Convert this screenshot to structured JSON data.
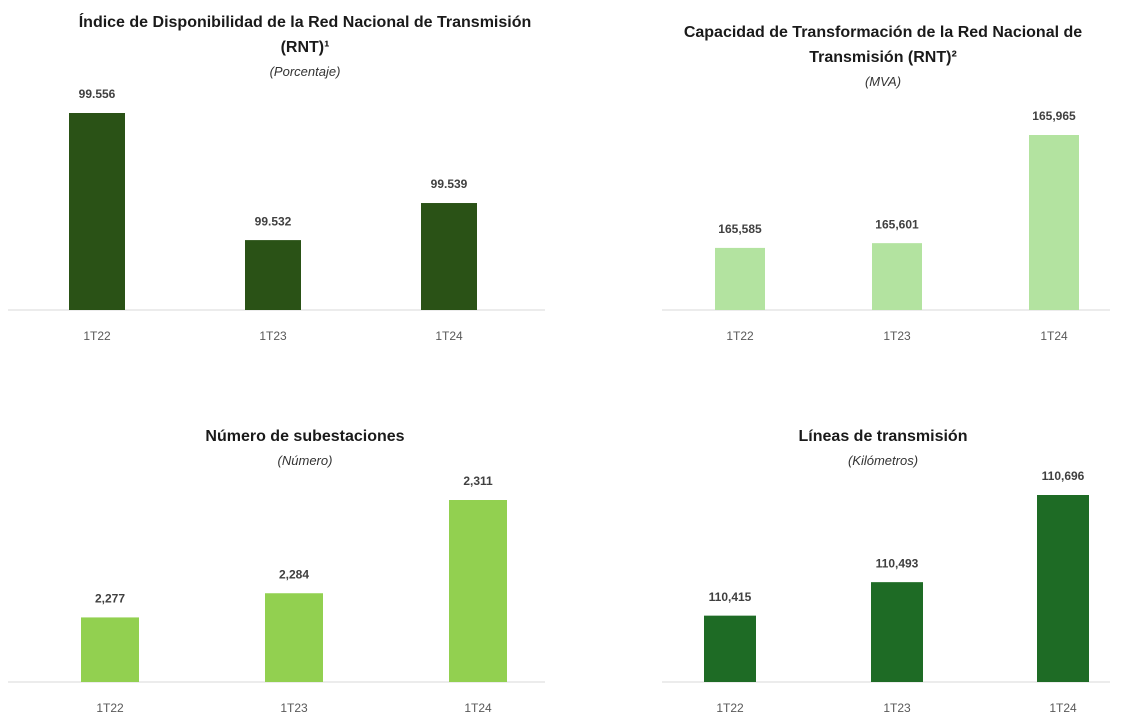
{
  "chart_data": [
    {
      "type": "bar",
      "title": "Índice de Disponibilidad de la Red Nacional de Transmisión (RNT)¹",
      "subtitle": "(Porcentaje)",
      "categories": [
        "1T22",
        "1T23",
        "1T24"
      ],
      "values": [
        99.556,
        99.532,
        99.539
      ],
      "color": "#2a5216"
    },
    {
      "type": "bar",
      "title": "Capacidad de Transformación de la Red Nacional de Transmisión (RNT)²",
      "subtitle": "(MVA)",
      "categories": [
        "1T22",
        "1T23",
        "1T24"
      ],
      "values": [
        165585,
        165601,
        165965
      ],
      "value_labels": [
        "165,585",
        "165,601",
        "165,965"
      ],
      "color": "#b3e3a0"
    },
    {
      "type": "bar",
      "title": "Número de subestaciones",
      "subtitle": "(Número)",
      "categories": [
        "1T22",
        "1T23",
        "1T24"
      ],
      "values": [
        2277,
        2284,
        2311
      ],
      "value_labels": [
        "2,277",
        "2,284",
        "2,311"
      ],
      "color": "#92d050"
    },
    {
      "type": "bar",
      "title": "Líneas de transmisión",
      "subtitle": "(Kilómetros)",
      "categories": [
        "1T22",
        "1T23",
        "1T24"
      ],
      "values": [
        110415,
        110493,
        110696
      ],
      "value_labels": [
        "110,415",
        "110,493",
        "110,696"
      ],
      "color": "#1e6b25"
    }
  ]
}
